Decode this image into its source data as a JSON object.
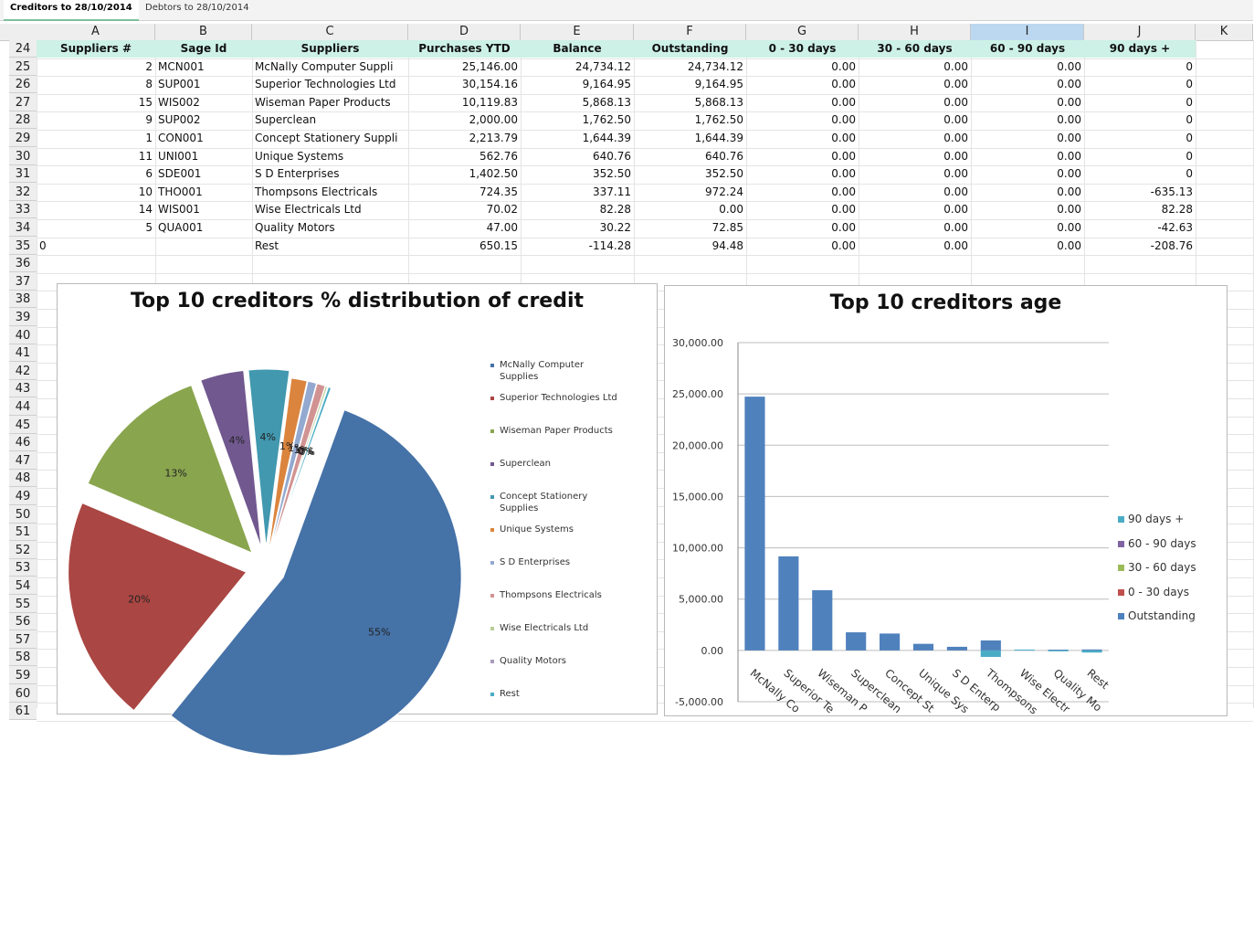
{
  "tabs": [
    {
      "label": "Creditors to 28/10/2014",
      "active": true
    },
    {
      "label": "Debtors to 28/10/2014",
      "active": false
    }
  ],
  "columns": [
    "A",
    "B",
    "C",
    "D",
    "E",
    "F",
    "G",
    "H",
    "I",
    "J",
    "K"
  ],
  "selected_column": "I",
  "rows": [
    "24",
    "25",
    "26",
    "27",
    "28",
    "29",
    "30",
    "31",
    "32",
    "33",
    "34",
    "35",
    "36",
    "37",
    "38",
    "39",
    "40",
    "41",
    "42",
    "43",
    "44",
    "45",
    "46",
    "47",
    "48",
    "49",
    "50",
    "51",
    "52",
    "53",
    "54",
    "55",
    "56",
    "57",
    "58",
    "59",
    "60",
    "61"
  ],
  "table": {
    "headers": [
      "Suppliers #",
      "Sage Id",
      "Suppliers",
      "Purchases YTD",
      "Balance",
      "Outstanding",
      "0 - 30 days",
      "30 - 60 days",
      "60 - 90 days",
      "90 days +"
    ],
    "rows": [
      [
        "2",
        "MCN001",
        "McNally Computer Suppli",
        "25,146.00",
        "24,734.12",
        "24,734.12",
        "0.00",
        "0.00",
        "0.00",
        "0"
      ],
      [
        "8",
        "SUP001",
        "Superior Technologies Ltd",
        "30,154.16",
        "9,164.95",
        "9,164.95",
        "0.00",
        "0.00",
        "0.00",
        "0"
      ],
      [
        "15",
        "WIS002",
        "Wiseman Paper Products",
        "10,119.83",
        "5,868.13",
        "5,868.13",
        "0.00",
        "0.00",
        "0.00",
        "0"
      ],
      [
        "9",
        "SUP002",
        "Superclean",
        "2,000.00",
        "1,762.50",
        "1,762.50",
        "0.00",
        "0.00",
        "0.00",
        "0"
      ],
      [
        "1",
        "CON001",
        "Concept Stationery Suppli",
        "2,213.79",
        "1,644.39",
        "1,644.39",
        "0.00",
        "0.00",
        "0.00",
        "0"
      ],
      [
        "11",
        "UNI001",
        "Unique Systems",
        "562.76",
        "640.76",
        "640.76",
        "0.00",
        "0.00",
        "0.00",
        "0"
      ],
      [
        "6",
        "SDE001",
        "S D Enterprises",
        "1,402.50",
        "352.50",
        "352.50",
        "0.00",
        "0.00",
        "0.00",
        "0"
      ],
      [
        "10",
        "THO001",
        "Thompsons Electricals",
        "724.35",
        "337.11",
        "972.24",
        "0.00",
        "0.00",
        "0.00",
        "-635.13"
      ],
      [
        "14",
        "WIS001",
        "Wise Electricals Ltd",
        "70.02",
        "82.28",
        "0.00",
        "0.00",
        "0.00",
        "0.00",
        "82.28"
      ],
      [
        "5",
        "QUA001",
        "Quality Motors",
        "47.00",
        "30.22",
        "72.85",
        "0.00",
        "0.00",
        "0.00",
        "-42.63"
      ],
      [
        "0",
        "",
        "Rest",
        "650.15",
        "-114.28",
        "94.48",
        "0.00",
        "0.00",
        "0.00",
        "-208.76"
      ]
    ]
  },
  "pie_chart": {
    "title": "Top 10 creditors % distribution of credit",
    "labels": [
      "55%",
      "20%",
      "13%",
      "4%",
      "4%",
      "1%",
      "1%",
      "1%",
      "0%",
      "0%",
      "0%"
    ],
    "legend": [
      "McNally Computer Supplies",
      "Superior Technologies Ltd",
      "Wiseman Paper Products",
      "Superclean",
      "Concept Stationery Supplies",
      "Unique Systems",
      "S D Enterprises",
      "Thompsons Electricals",
      "Wise Electricals Ltd",
      "Quality Motors",
      "Rest"
    ],
    "colors": [
      "#4572a7",
      "#aa4643",
      "#89a54e",
      "#71588f",
      "#4198af",
      "#db843d",
      "#93a9cf",
      "#d19392",
      "#b9cd96",
      "#a99bbd",
      "#4bacc6"
    ]
  },
  "bar_chart": {
    "title": "Top 10 creditors age",
    "y_ticks": [
      "30,000.00",
      "25,000.00",
      "20,000.00",
      "15,000.00",
      "10,000.00",
      "5,000.00",
      "0.00",
      "-5,000.00"
    ],
    "x_labels": [
      "McNally Co",
      "Superior Te",
      "Wiseman P",
      "Superclean",
      "Concept St",
      "Unique Sys",
      "S D Enterp",
      "Thompsons",
      "Wise Electr",
      "Quality Mo",
      "Rest"
    ],
    "legend": [
      {
        "label": "90 days +",
        "color": "#4bacc6"
      },
      {
        "label": "60 - 90 days",
        "color": "#8064a2"
      },
      {
        "label": "30 - 60 days",
        "color": "#9bbb59"
      },
      {
        "label": "0 - 30 days",
        "color": "#c0504d"
      },
      {
        "label": "Outstanding",
        "color": "#4f81bd"
      }
    ]
  },
  "chart_data": [
    {
      "type": "pie",
      "title": "Top 10 creditors % distribution of credit",
      "categories": [
        "McNally Computer Supplies",
        "Superior Technologies Ltd",
        "Wiseman Paper Products",
        "Superclean",
        "Concept Stationery Supplies",
        "Unique Systems",
        "S D Enterprises",
        "Thompsons Electricals",
        "Wise Electricals Ltd",
        "Quality Motors",
        "Rest"
      ],
      "values": [
        24734.12,
        9164.95,
        5868.13,
        1762.5,
        1644.39,
        640.76,
        352.5,
        337.11,
        82.28,
        30.22,
        114.28
      ]
    },
    {
      "type": "bar",
      "title": "Top 10 creditors age",
      "categories": [
        "McNally Co",
        "Superior Te",
        "Wiseman P",
        "Superclean",
        "Concept St",
        "Unique Sys",
        "S D Enterp",
        "Thompsons",
        "Wise Electr",
        "Quality Mo",
        "Rest"
      ],
      "series": [
        {
          "name": "Outstanding",
          "values": [
            24734.12,
            9164.95,
            5868.13,
            1762.5,
            1644.39,
            640.76,
            352.5,
            972.24,
            0.0,
            72.85,
            94.48
          ]
        },
        {
          "name": "0 - 30 days",
          "values": [
            0,
            0,
            0,
            0,
            0,
            0,
            0,
            0,
            0,
            0,
            0
          ]
        },
        {
          "name": "30 - 60 days",
          "values": [
            0,
            0,
            0,
            0,
            0,
            0,
            0,
            0,
            0,
            0,
            0
          ]
        },
        {
          "name": "60 - 90 days",
          "values": [
            0,
            0,
            0,
            0,
            0,
            0,
            0,
            0,
            0,
            0,
            0
          ]
        },
        {
          "name": "90 days +",
          "values": [
            0,
            0,
            0,
            0,
            0,
            0,
            0,
            -635.13,
            82.28,
            -42.63,
            -208.76
          ]
        }
      ],
      "ylim": [
        -5000,
        30000
      ],
      "grid": true,
      "legend_position": "right"
    }
  ]
}
